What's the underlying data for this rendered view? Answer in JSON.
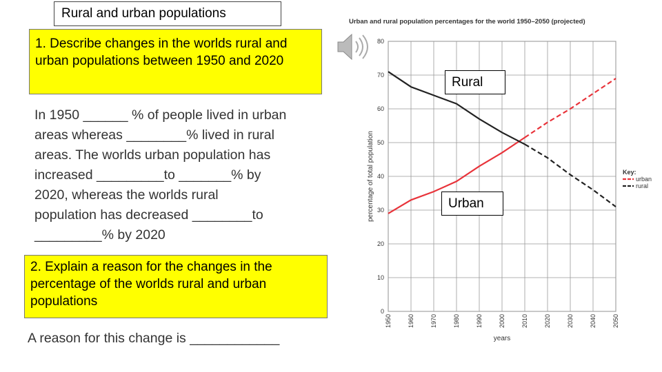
{
  "slide": {
    "title": "Rural and urban populations",
    "question_1": "1.  Describe changes in the worlds rural and urban populations between 1950 and 2020",
    "paragraph": {
      "lines": [
        "In 1950 ______ % of people lived in urban",
        "areas whereas ________% lived in rural",
        "areas.  The worlds urban population has",
        "increased _________to _______% by",
        "2020, whereas the worlds rural",
        "population has decreased ________to",
        "_________% by 2020"
      ]
    },
    "question_2": "2.  Explain a reason for the changes in the percentage of the worlds rural and urban populations",
    "answer_prompt": "A reason for this change is ____________",
    "label_rural": "Rural",
    "label_urban": "Urban"
  },
  "chart_data": {
    "type": "line",
    "title": "Urban and rural population percentages for the world 1950–2050 (projected)",
    "x_label": "years",
    "y_label": "percentage of total population",
    "legend_title": "Key:",
    "x": [
      1950,
      1960,
      1970,
      1980,
      1990,
      2000,
      2010,
      2020,
      2030,
      2040,
      2050
    ],
    "series": [
      {
        "name": "urban",
        "color": "#e8333a",
        "values": [
          29,
          33,
          35.5,
          38.5,
          43,
          47,
          51.5,
          56,
          60,
          64.5,
          69
        ]
      },
      {
        "name": "rural",
        "color": "#222222",
        "values": [
          71,
          66.5,
          64,
          61.5,
          57,
          53,
          49.5,
          45.5,
          40.5,
          36,
          31
        ]
      }
    ],
    "projection_start": 2010,
    "xlim": [
      1950,
      2050
    ],
    "xticks": [
      1950,
      1960,
      1970,
      1980,
      1990,
      2000,
      2010,
      2020,
      2030,
      2040,
      2050
    ],
    "ylim": [
      0,
      80
    ],
    "yticks": [
      0,
      10,
      20,
      30,
      40,
      50,
      60,
      70,
      80
    ],
    "grid": true
  }
}
